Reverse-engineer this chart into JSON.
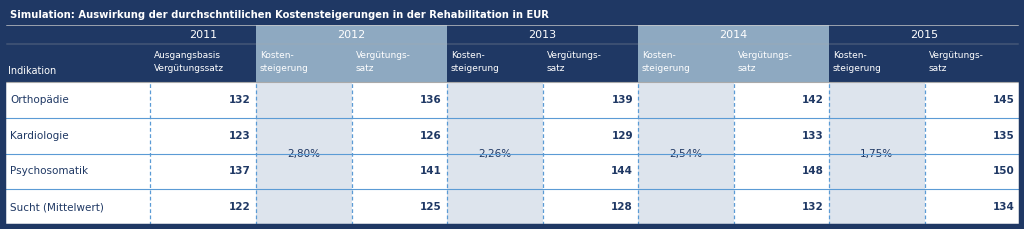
{
  "title": "Simulation: Auswirkung der durchschntilichen Kostensteigerungen in der Rehabilitation in EUR",
  "title_bg": "#1F3864",
  "title_color": "#FFFFFF",
  "header_year_bg_highlight": "#8EA9C1",
  "header_year_bg_dark": "#1F3864",
  "header_year_color": "#FFFFFF",
  "row_label_header": "Indikation",
  "row_labels": [
    "Orthopädie",
    "Kardiologie",
    "Psychosomatik",
    "Sucht (Mittelwert)"
  ],
  "col_ausgangsbasis": [
    132,
    123,
    137,
    122
  ],
  "kostensteigerungen": [
    "2,80%",
    "2,26%",
    "2,54%",
    "1,75%"
  ],
  "data_2012": [
    136,
    126,
    141,
    125
  ],
  "data_2013": [
    139,
    129,
    144,
    128
  ],
  "data_2014": [
    142,
    133,
    148,
    132
  ],
  "data_2015": [
    145,
    135,
    150,
    134
  ],
  "bg_white": "#FFFFFF",
  "bg_kosten_col": "#DDE4ED",
  "bg_verg_col": "#FFFFFF",
  "text_dark": "#1F3864",
  "text_header": "#FFFFFF",
  "border_blue": "#5B9BD5",
  "border_outer": "#FFFFFF",
  "row_sep_color": "#5B9BD5",
  "outer_frame_color": "#1F3864"
}
